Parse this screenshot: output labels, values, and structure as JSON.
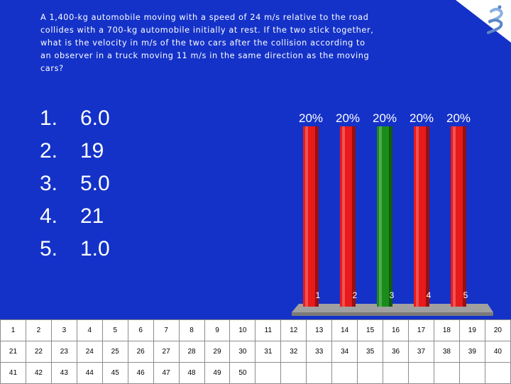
{
  "question": "A 1,400-kg automobile moving with a speed of 24 m/s relative to the road collides with a 700-kg automobile initially at rest. If the two stick together, what is the velocity in m/s of the two cars after the collision according to an observer in a truck moving 11 m/s in the same direction as the moving cars?",
  "answers": [
    {
      "num": "1.",
      "text": "6.0"
    },
    {
      "num": "2.",
      "text": "19"
    },
    {
      "num": "3.",
      "text": "5.0"
    },
    {
      "num": "4.",
      "text": "21"
    },
    {
      "num": "5.",
      "text": "1.0"
    }
  ],
  "chart_data": {
    "type": "bar",
    "categories": [
      "1",
      "2",
      "3",
      "4",
      "5"
    ],
    "values": [
      20,
      20,
      20,
      20,
      20
    ],
    "value_labels": [
      "20%",
      "20%",
      "20%",
      "20%",
      "20%"
    ],
    "colors": [
      "#e81a1a",
      "#e81a1a",
      "#1a8c1a",
      "#e81a1a",
      "#e81a1a"
    ],
    "ylim": [
      0,
      20
    ]
  },
  "grid": {
    "rows": [
      [
        "1",
        "2",
        "3",
        "4",
        "5",
        "6",
        "7",
        "8",
        "9",
        "10",
        "11",
        "12",
        "13",
        "14",
        "15",
        "16",
        "17",
        "18",
        "19",
        "20"
      ],
      [
        "21",
        "22",
        "23",
        "24",
        "25",
        "26",
        "27",
        "28",
        "29",
        "30",
        "31",
        "32",
        "33",
        "34",
        "35",
        "36",
        "37",
        "38",
        "39",
        "40"
      ],
      [
        "41",
        "42",
        "43",
        "44",
        "45",
        "46",
        "47",
        "48",
        "49",
        "50",
        "",
        "",
        "",
        "",
        "",
        "",
        "",
        "",
        "",
        ""
      ]
    ]
  },
  "logo": {
    "icon": "turning-point-logo-icon"
  }
}
